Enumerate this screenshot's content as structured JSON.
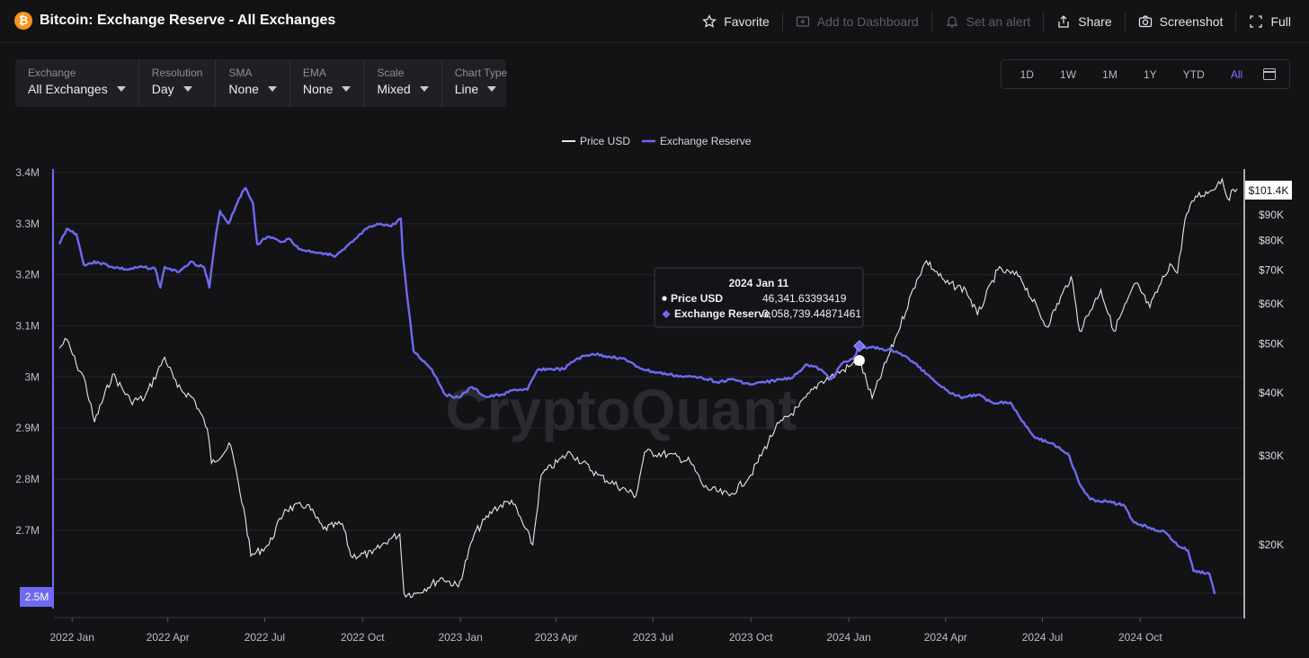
{
  "header": {
    "coin_glyph": "₿",
    "title": "Bitcoin: Exchange Reserve - All Exchanges",
    "actions": [
      {
        "label": "Favorite",
        "icon": "star-icon",
        "enabled": true
      },
      {
        "label": "Add to Dashboard",
        "icon": "dashboard-add-icon",
        "enabled": false
      },
      {
        "label": "Set an alert",
        "icon": "bell-icon",
        "enabled": false
      },
      {
        "label": "Share",
        "icon": "share-icon",
        "enabled": true
      },
      {
        "label": "Screenshot",
        "icon": "camera-icon",
        "enabled": true
      },
      {
        "label": "Full",
        "icon": "fullscreen-icon",
        "enabled": true
      }
    ]
  },
  "filters": [
    {
      "label": "Exchange",
      "value": "All Exchanges"
    },
    {
      "label": "Resolution",
      "value": "Day"
    },
    {
      "label": "SMA",
      "value": "None"
    },
    {
      "label": "EMA",
      "value": "None"
    },
    {
      "label": "Scale",
      "value": "Mixed"
    },
    {
      "label": "Chart Type",
      "value": "Line"
    }
  ],
  "ranges": {
    "options": [
      "1D",
      "1W",
      "1M",
      "1Y",
      "YTD",
      "All"
    ],
    "active": "All",
    "calendar_icon": "calendar-icon"
  },
  "colors": {
    "price": "#e8e8ec",
    "reserve": "#6f6af0",
    "background": "#131316",
    "grid": "#26262c",
    "watermark": "#2a2a30"
  },
  "watermark": "CryptoQuant",
  "chart_data": {
    "type": "line",
    "legend": {
      "position": "top-center",
      "entries": [
        "Price USD",
        "Exchange Reserve"
      ]
    },
    "x_range": [
      "2021-12-20",
      "2024-12-31"
    ],
    "x_ticks": [
      "2022 Jan",
      "2022 Apr",
      "2022 Jul",
      "2022 Oct",
      "2023 Jan",
      "2023 Apr",
      "2023 Jul",
      "2023 Oct",
      "2024 Jan",
      "2024 Apr",
      "2024 Jul",
      "2024 Oct"
    ],
    "y_left": {
      "ticks": [
        "3.4M",
        "3.3M",
        "3.2M",
        "3.1M",
        "3M",
        "2.9M",
        "2.8M",
        "2.7M"
      ],
      "tick_values": [
        3400000,
        3300000,
        3200000,
        3100000,
        3000000,
        2900000,
        2800000,
        2700000
      ],
      "range": [
        2550000,
        3400000
      ],
      "min_badge": "2.5M"
    },
    "y_right": {
      "scale": "log",
      "ticks": [
        "$90K",
        "$80K",
        "$70K",
        "$60K",
        "$50K",
        "$40K",
        "$30K",
        "$20K"
      ],
      "tick_values": [
        90000,
        80000,
        70000,
        60000,
        50000,
        40000,
        30000,
        20000
      ],
      "last_badge": "$101.4K"
    },
    "series": [
      {
        "name": "Exchange Reserve",
        "axis": "left",
        "points": [
          [
            "2021-12-20",
            3260000
          ],
          [
            "2021-12-27",
            3290000
          ],
          [
            "2022-01-05",
            3280000
          ],
          [
            "2022-01-12",
            3220000
          ],
          [
            "2022-01-25",
            3225000
          ],
          [
            "2022-02-08",
            3215000
          ],
          [
            "2022-02-22",
            3210000
          ],
          [
            "2022-03-08",
            3215000
          ],
          [
            "2022-03-20",
            3212000
          ],
          [
            "2022-03-25",
            3175000
          ],
          [
            "2022-03-29",
            3215000
          ],
          [
            "2022-04-10",
            3205000
          ],
          [
            "2022-04-22",
            3225000
          ],
          [
            "2022-05-05",
            3215000
          ],
          [
            "2022-05-10",
            3175000
          ],
          [
            "2022-05-15",
            3260000
          ],
          [
            "2022-05-20",
            3325000
          ],
          [
            "2022-05-28",
            3300000
          ],
          [
            "2022-06-07",
            3350000
          ],
          [
            "2022-06-13",
            3370000
          ],
          [
            "2022-06-20",
            3340000
          ],
          [
            "2022-06-24",
            3260000
          ],
          [
            "2022-07-05",
            3275000
          ],
          [
            "2022-07-15",
            3265000
          ],
          [
            "2022-07-25",
            3270000
          ],
          [
            "2022-08-02",
            3250000
          ],
          [
            "2022-08-15",
            3245000
          ],
          [
            "2022-08-28",
            3242000
          ],
          [
            "2022-09-05",
            3235000
          ],
          [
            "2022-09-14",
            3250000
          ],
          [
            "2022-09-22",
            3265000
          ],
          [
            "2022-10-05",
            3290000
          ],
          [
            "2022-10-18",
            3300000
          ],
          [
            "2022-10-28",
            3295000
          ],
          [
            "2022-11-06",
            3310000
          ],
          [
            "2022-11-08",
            3235000
          ],
          [
            "2022-11-13",
            3140000
          ],
          [
            "2022-11-18",
            3050000
          ],
          [
            "2022-12-05",
            3015000
          ],
          [
            "2022-12-18",
            2965000
          ],
          [
            "2022-12-30",
            2960000
          ],
          [
            "2023-01-12",
            2980000
          ],
          [
            "2023-01-25",
            2960000
          ],
          [
            "2023-02-08",
            2965000
          ],
          [
            "2023-02-22",
            2975000
          ],
          [
            "2023-03-05",
            2975000
          ],
          [
            "2023-03-15",
            3015000
          ],
          [
            "2023-03-25",
            3015000
          ],
          [
            "2023-04-08",
            3015000
          ],
          [
            "2023-04-20",
            3035000
          ],
          [
            "2023-05-05",
            3045000
          ],
          [
            "2023-05-20",
            3040000
          ],
          [
            "2023-06-05",
            3035000
          ],
          [
            "2023-06-15",
            3020000
          ],
          [
            "2023-06-30",
            3010000
          ],
          [
            "2023-07-15",
            3005000
          ],
          [
            "2023-07-30",
            3000000
          ],
          [
            "2023-08-15",
            3000000
          ],
          [
            "2023-08-30",
            2990000
          ],
          [
            "2023-09-15",
            2995000
          ],
          [
            "2023-09-30",
            2985000
          ],
          [
            "2023-10-15",
            2990000
          ],
          [
            "2023-10-30",
            2995000
          ],
          [
            "2023-11-10",
            3000000
          ],
          [
            "2023-11-22",
            3025000
          ],
          [
            "2023-12-05",
            3015000
          ],
          [
            "2023-12-15",
            2995000
          ],
          [
            "2023-12-25",
            3025000
          ],
          [
            "2024-01-05",
            3035000
          ],
          [
            "2024-01-11",
            3058739
          ],
          [
            "2024-01-20",
            3058000
          ],
          [
            "2024-01-31",
            3055000
          ],
          [
            "2024-02-15",
            3050000
          ],
          [
            "2024-03-01",
            3030000
          ],
          [
            "2024-03-15",
            3005000
          ],
          [
            "2024-04-01",
            2975000
          ],
          [
            "2024-04-15",
            2960000
          ],
          [
            "2024-05-01",
            2965000
          ],
          [
            "2024-05-15",
            2950000
          ],
          [
            "2024-06-01",
            2950000
          ],
          [
            "2024-06-10",
            2920000
          ],
          [
            "2024-06-25",
            2880000
          ],
          [
            "2024-07-10",
            2870000
          ],
          [
            "2024-07-25",
            2850000
          ],
          [
            "2024-08-05",
            2790000
          ],
          [
            "2024-08-15",
            2760000
          ],
          [
            "2024-09-01",
            2755000
          ],
          [
            "2024-09-15",
            2750000
          ],
          [
            "2024-09-25",
            2715000
          ],
          [
            "2024-10-10",
            2705000
          ],
          [
            "2024-10-25",
            2695000
          ],
          [
            "2024-11-05",
            2670000
          ],
          [
            "2024-11-15",
            2660000
          ],
          [
            "2024-11-20",
            2620000
          ],
          [
            "2024-12-05",
            2615000
          ],
          [
            "2024-12-10",
            2575000
          ]
        ]
      },
      {
        "name": "Price USD",
        "axis": "right",
        "points": [
          [
            "2021-12-20",
            49000
          ],
          [
            "2021-12-27",
            51000
          ],
          [
            "2022-01-05",
            45500
          ],
          [
            "2022-01-12",
            43000
          ],
          [
            "2022-01-22",
            35000
          ],
          [
            "2022-02-08",
            43500
          ],
          [
            "2022-02-25",
            38500
          ],
          [
            "2022-03-10",
            39000
          ],
          [
            "2022-03-29",
            47000
          ],
          [
            "2022-04-10",
            41000
          ],
          [
            "2022-04-25",
            39000
          ],
          [
            "2022-05-08",
            34000
          ],
          [
            "2022-05-12",
            29000
          ],
          [
            "2022-05-30",
            31500
          ],
          [
            "2022-06-13",
            22500
          ],
          [
            "2022-06-18",
            19000
          ],
          [
            "2022-07-05",
            20000
          ],
          [
            "2022-07-20",
            23500
          ],
          [
            "2022-08-10",
            24000
          ],
          [
            "2022-08-25",
            21500
          ],
          [
            "2022-09-12",
            22000
          ],
          [
            "2022-09-20",
            19000
          ],
          [
            "2022-10-10",
            19200
          ],
          [
            "2022-10-26",
            20500
          ],
          [
            "2022-11-05",
            21000
          ],
          [
            "2022-11-09",
            16000
          ],
          [
            "2022-11-20",
            16000
          ],
          [
            "2022-12-15",
            17200
          ],
          [
            "2022-12-30",
            16500
          ],
          [
            "2023-01-14",
            21000
          ],
          [
            "2023-02-01",
            23500
          ],
          [
            "2023-02-18",
            24500
          ],
          [
            "2023-03-10",
            20000
          ],
          [
            "2023-03-18",
            27500
          ],
          [
            "2023-04-14",
            30500
          ],
          [
            "2023-05-10",
            27500
          ],
          [
            "2023-06-15",
            25000
          ],
          [
            "2023-06-23",
            30500
          ],
          [
            "2023-07-15",
            30200
          ],
          [
            "2023-08-05",
            29200
          ],
          [
            "2023-08-18",
            26000
          ],
          [
            "2023-09-11",
            25000
          ],
          [
            "2023-10-01",
            27500
          ],
          [
            "2023-10-24",
            34000
          ],
          [
            "2023-11-15",
            37500
          ],
          [
            "2023-12-05",
            42000
          ],
          [
            "2023-12-20",
            43500
          ],
          [
            "2024-01-01",
            45000
          ],
          [
            "2024-01-11",
            46341
          ],
          [
            "2024-01-23",
            39000
          ],
          [
            "2024-02-15",
            52000
          ],
          [
            "2024-03-05",
            67000
          ],
          [
            "2024-03-14",
            73000
          ],
          [
            "2024-04-01",
            66000
          ],
          [
            "2024-04-20",
            64000
          ],
          [
            "2024-05-01",
            57000
          ],
          [
            "2024-05-20",
            70000
          ],
          [
            "2024-06-10",
            68000
          ],
          [
            "2024-07-05",
            54000
          ],
          [
            "2024-07-28",
            68000
          ],
          [
            "2024-08-05",
            53000
          ],
          [
            "2024-08-25",
            64000
          ],
          [
            "2024-09-06",
            53000
          ],
          [
            "2024-09-27",
            66000
          ],
          [
            "2024-10-10",
            59000
          ],
          [
            "2024-10-29",
            72000
          ],
          [
            "2024-11-05",
            69000
          ],
          [
            "2024-11-12",
            88000
          ],
          [
            "2024-11-22",
            98000
          ],
          [
            "2024-12-05",
            100000
          ],
          [
            "2024-12-17",
            106000
          ],
          [
            "2024-12-22",
            97000
          ],
          [
            "2024-12-31",
            101400
          ]
        ]
      }
    ],
    "tooltip": {
      "date": "2024 Jan 11",
      "rows": [
        {
          "label": "Price USD",
          "value": "46,341.63393419"
        },
        {
          "label": "Exchange Reserve",
          "value": "3,058,739.44871461"
        }
      ]
    }
  }
}
